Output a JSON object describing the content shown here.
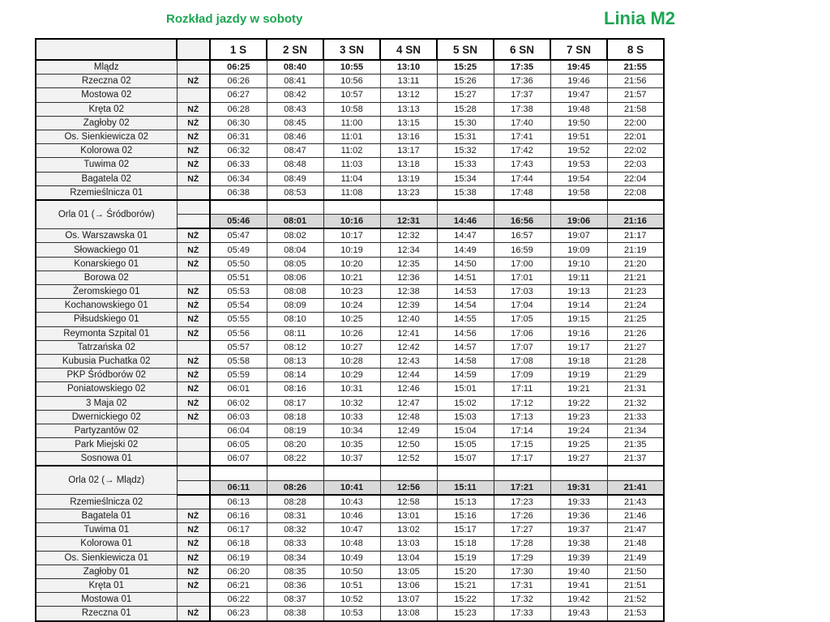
{
  "page": {
    "title": "Rozkład jazdy w soboty",
    "line_label": "Linia M2",
    "colors": {
      "accent_green": "#1ea653",
      "name_column_bg": "#f2f2f2",
      "section_row_bg": "#d9d9d9",
      "border": "#000000"
    }
  },
  "table": {
    "request_stop_label": "NŻ",
    "columns": [
      "1 S",
      "2 SN",
      "3 SN",
      "4 SN",
      "5 SN",
      "6 SN",
      "7 SN",
      "8 S"
    ],
    "rows": [
      {
        "type": "stop",
        "name": "Mlądz",
        "nz": false,
        "bold": true,
        "times": [
          "06:25",
          "08:40",
          "10:55",
          "13:10",
          "15:25",
          "17:35",
          "19:45",
          "21:55"
        ]
      },
      {
        "type": "stop",
        "name": "Rzeczna 02",
        "nz": true,
        "bold": false,
        "times": [
          "06:26",
          "08:41",
          "10:56",
          "13:11",
          "15:26",
          "17:36",
          "19:46",
          "21:56"
        ]
      },
      {
        "type": "stop",
        "name": "Mostowa 02",
        "nz": false,
        "bold": false,
        "times": [
          "06:27",
          "08:42",
          "10:57",
          "13:12",
          "15:27",
          "17:37",
          "19:47",
          "21:57"
        ]
      },
      {
        "type": "stop",
        "name": "Kręta 02",
        "nz": true,
        "bold": false,
        "times": [
          "06:28",
          "08:43",
          "10:58",
          "13:13",
          "15:28",
          "17:38",
          "19:48",
          "21:58"
        ]
      },
      {
        "type": "stop",
        "name": "Zagłoby 02",
        "nz": true,
        "bold": false,
        "times": [
          "06:30",
          "08:45",
          "11:00",
          "13:15",
          "15:30",
          "17:40",
          "19:50",
          "22:00"
        ]
      },
      {
        "type": "stop",
        "name": "Os. Sienkiewicza 02",
        "nz": true,
        "bold": false,
        "times": [
          "06:31",
          "08:46",
          "11:01",
          "13:16",
          "15:31",
          "17:41",
          "19:51",
          "22:01"
        ]
      },
      {
        "type": "stop",
        "name": "Kolorowa 02",
        "nz": true,
        "bold": false,
        "times": [
          "06:32",
          "08:47",
          "11:02",
          "13:17",
          "15:32",
          "17:42",
          "19:52",
          "22:02"
        ]
      },
      {
        "type": "stop",
        "name": "Tuwima 02",
        "nz": true,
        "bold": false,
        "times": [
          "06:33",
          "08:48",
          "11:03",
          "13:18",
          "15:33",
          "17:43",
          "19:53",
          "22:03"
        ]
      },
      {
        "type": "stop",
        "name": "Bagatela 02",
        "nz": true,
        "bold": false,
        "times": [
          "06:34",
          "08:49",
          "11:04",
          "13:19",
          "15:34",
          "17:44",
          "19:54",
          "22:04"
        ]
      },
      {
        "type": "stop",
        "name": "Rzemieślnicza 01",
        "nz": false,
        "bold": false,
        "times": [
          "06:38",
          "08:53",
          "11:08",
          "13:23",
          "15:38",
          "17:48",
          "19:58",
          "22:08"
        ]
      },
      {
        "type": "section",
        "name": "Orla 01 (→ Śródborów)",
        "times": [
          "05:46",
          "08:01",
          "10:16",
          "12:31",
          "14:46",
          "16:56",
          "19:06",
          "21:16"
        ]
      },
      {
        "type": "stop",
        "name": "Os. Warszawska 01",
        "nz": true,
        "bold": false,
        "times": [
          "05:47",
          "08:02",
          "10:17",
          "12:32",
          "14:47",
          "16:57",
          "19:07",
          "21:17"
        ]
      },
      {
        "type": "stop",
        "name": "Słowackiego 01",
        "nz": true,
        "bold": false,
        "times": [
          "05:49",
          "08:04",
          "10:19",
          "12:34",
          "14:49",
          "16:59",
          "19:09",
          "21:19"
        ]
      },
      {
        "type": "stop",
        "name": "Konarskiego 01",
        "nz": true,
        "bold": false,
        "times": [
          "05:50",
          "08:05",
          "10:20",
          "12:35",
          "14:50",
          "17:00",
          "19:10",
          "21:20"
        ]
      },
      {
        "type": "stop",
        "name": "Borowa 02",
        "nz": false,
        "bold": false,
        "times": [
          "05:51",
          "08:06",
          "10:21",
          "12:36",
          "14:51",
          "17:01",
          "19:11",
          "21:21"
        ]
      },
      {
        "type": "stop",
        "name": "Żeromskiego 01",
        "nz": true,
        "bold": false,
        "times": [
          "05:53",
          "08:08",
          "10:23",
          "12:38",
          "14:53",
          "17:03",
          "19:13",
          "21:23"
        ]
      },
      {
        "type": "stop",
        "name": "Kochanowskiego 01",
        "nz": true,
        "bold": false,
        "times": [
          "05:54",
          "08:09",
          "10:24",
          "12:39",
          "14:54",
          "17:04",
          "19:14",
          "21:24"
        ]
      },
      {
        "type": "stop",
        "name": "Piłsudskiego 01",
        "nz": true,
        "bold": false,
        "times": [
          "05:55",
          "08:10",
          "10:25",
          "12:40",
          "14:55",
          "17:05",
          "19:15",
          "21:25"
        ]
      },
      {
        "type": "stop",
        "name": "Reymonta Szpital 01",
        "nz": true,
        "bold": false,
        "times": [
          "05:56",
          "08:11",
          "10:26",
          "12:41",
          "14:56",
          "17:06",
          "19:16",
          "21:26"
        ]
      },
      {
        "type": "stop",
        "name": "Tatrzańska 02",
        "nz": false,
        "bold": false,
        "times": [
          "05:57",
          "08:12",
          "10:27",
          "12:42",
          "14:57",
          "17:07",
          "19:17",
          "21:27"
        ]
      },
      {
        "type": "stop",
        "name": "Kubusia Puchatka 02",
        "nz": true,
        "bold": false,
        "times": [
          "05:58",
          "08:13",
          "10:28",
          "12:43",
          "14:58",
          "17:08",
          "19:18",
          "21:28"
        ]
      },
      {
        "type": "stop",
        "name": "PKP Śródborów 02",
        "nz": true,
        "bold": false,
        "times": [
          "05:59",
          "08:14",
          "10:29",
          "12:44",
          "14:59",
          "17:09",
          "19:19",
          "21:29"
        ]
      },
      {
        "type": "stop",
        "name": "Poniatowskiego 02",
        "nz": true,
        "bold": false,
        "times": [
          "06:01",
          "08:16",
          "10:31",
          "12:46",
          "15:01",
          "17:11",
          "19:21",
          "21:31"
        ]
      },
      {
        "type": "stop",
        "name": "3 Maja 02",
        "nz": true,
        "bold": false,
        "times": [
          "06:02",
          "08:17",
          "10:32",
          "12:47",
          "15:02",
          "17:12",
          "19:22",
          "21:32"
        ]
      },
      {
        "type": "stop",
        "name": "Dwernickiego 02",
        "nz": true,
        "bold": false,
        "times": [
          "06:03",
          "08:18",
          "10:33",
          "12:48",
          "15:03",
          "17:13",
          "19:23",
          "21:33"
        ]
      },
      {
        "type": "stop",
        "name": "Partyzantów 02",
        "nz": false,
        "bold": false,
        "times": [
          "06:04",
          "08:19",
          "10:34",
          "12:49",
          "15:04",
          "17:14",
          "19:24",
          "21:34"
        ]
      },
      {
        "type": "stop",
        "name": "Park Miejski 02",
        "nz": false,
        "bold": false,
        "times": [
          "06:05",
          "08:20",
          "10:35",
          "12:50",
          "15:05",
          "17:15",
          "19:25",
          "21:35"
        ]
      },
      {
        "type": "stop",
        "name": "Sosnowa 01",
        "nz": false,
        "bold": false,
        "times": [
          "06:07",
          "08:22",
          "10:37",
          "12:52",
          "15:07",
          "17:17",
          "19:27",
          "21:37"
        ]
      },
      {
        "type": "section",
        "name": "Orla 02 (→ Mlądz)",
        "times": [
          "06:11",
          "08:26",
          "10:41",
          "12:56",
          "15:11",
          "17:21",
          "19:31",
          "21:41"
        ]
      },
      {
        "type": "stop",
        "name": "Rzemieślnicza 02",
        "nz": false,
        "bold": false,
        "times": [
          "06:13",
          "08:28",
          "10:43",
          "12:58",
          "15:13",
          "17:23",
          "19:33",
          "21:43"
        ]
      },
      {
        "type": "stop",
        "name": "Bagatela 01",
        "nz": true,
        "bold": false,
        "times": [
          "06:16",
          "08:31",
          "10:46",
          "13:01",
          "15:16",
          "17:26",
          "19:36",
          "21:46"
        ]
      },
      {
        "type": "stop",
        "name": "Tuwima 01",
        "nz": true,
        "bold": false,
        "times": [
          "06:17",
          "08:32",
          "10:47",
          "13:02",
          "15:17",
          "17:27",
          "19:37",
          "21:47"
        ]
      },
      {
        "type": "stop",
        "name": "Kolorowa 01",
        "nz": true,
        "bold": false,
        "times": [
          "06:18",
          "08:33",
          "10:48",
          "13:03",
          "15:18",
          "17:28",
          "19:38",
          "21:48"
        ]
      },
      {
        "type": "stop",
        "name": "Os. Sienkiewicza 01",
        "nz": true,
        "bold": false,
        "times": [
          "06:19",
          "08:34",
          "10:49",
          "13:04",
          "15:19",
          "17:29",
          "19:39",
          "21:49"
        ]
      },
      {
        "type": "stop",
        "name": "Zagłoby 01",
        "nz": true,
        "bold": false,
        "times": [
          "06:20",
          "08:35",
          "10:50",
          "13:05",
          "15:20",
          "17:30",
          "19:40",
          "21:50"
        ]
      },
      {
        "type": "stop",
        "name": "Kręta 01",
        "nz": true,
        "bold": false,
        "times": [
          "06:21",
          "08:36",
          "10:51",
          "13:06",
          "15:21",
          "17:31",
          "19:41",
          "21:51"
        ]
      },
      {
        "type": "stop",
        "name": "Mostowa 01",
        "nz": false,
        "bold": false,
        "times": [
          "06:22",
          "08:37",
          "10:52",
          "13:07",
          "15:22",
          "17:32",
          "19:42",
          "21:52"
        ]
      },
      {
        "type": "stop",
        "name": "Rzeczna 01",
        "nz": true,
        "bold": false,
        "times": [
          "06:23",
          "08:38",
          "10:53",
          "13:08",
          "15:23",
          "17:33",
          "19:43",
          "21:53"
        ]
      }
    ]
  }
}
